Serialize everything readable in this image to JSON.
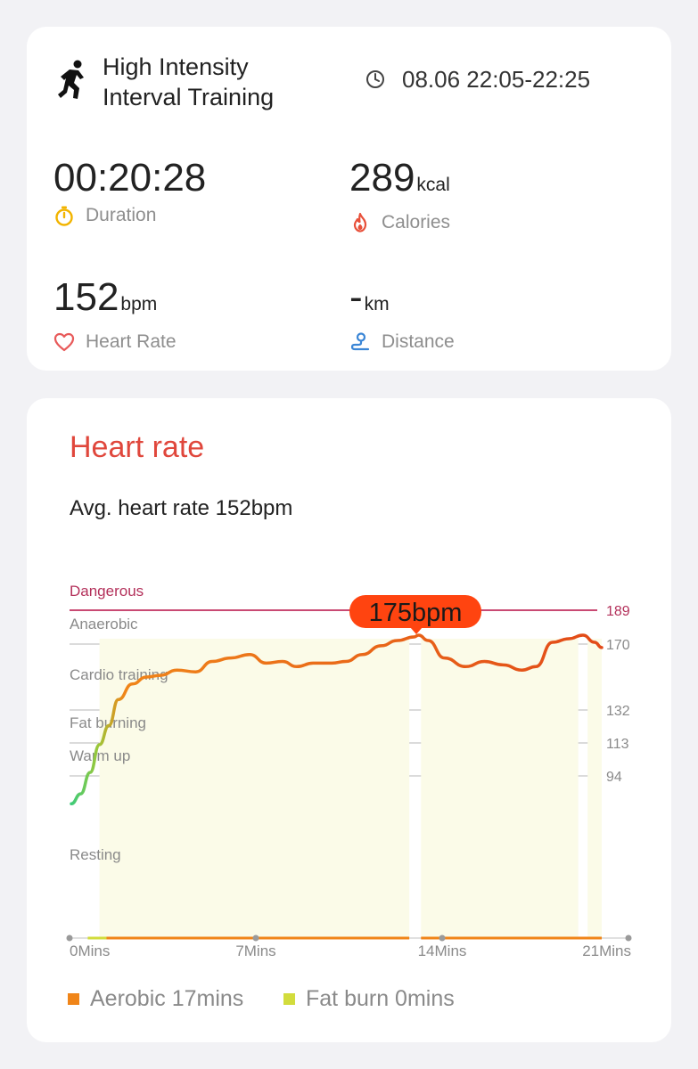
{
  "workout": {
    "title_line1": "High Intensity",
    "title_line2": "Interval Training",
    "time_range": "08.06 22:05-22:25"
  },
  "stats": {
    "duration": {
      "value": "00:20:28",
      "unit": "",
      "label": "Duration"
    },
    "calories": {
      "value": "289",
      "unit": "kcal",
      "label": "Calories"
    },
    "heart_rate": {
      "value": "152",
      "unit": "bpm",
      "label": "Heart Rate"
    },
    "distance": {
      "value": "-",
      "unit": "km",
      "label": "Distance"
    }
  },
  "heart_rate_section": {
    "title": "Heart rate",
    "avg_text": "Avg. heart rate 152bpm",
    "peak_callout": "175bpm",
    "legend": [
      {
        "label": "Aerobic 17mins",
        "color": "#f08519"
      },
      {
        "label": "Fat burn 0mins",
        "color": "#d2dc3c"
      }
    ]
  },
  "chart_data": {
    "type": "line",
    "x_labels": [
      "0Mins",
      "7Mins",
      "14Mins",
      "21Mins"
    ],
    "x_range": [
      0,
      22.6
    ],
    "zones": [
      {
        "name": "Dangerous",
        "bpm": 189
      },
      {
        "name": "Anaerobic",
        "bpm": 170
      },
      {
        "name": "Cardio training",
        "bpm": null
      },
      {
        "name": "Fat burning",
        "bpm": 132
      },
      {
        "name": "Warm up",
        "bpm": 113
      },
      {
        "name": "Resting",
        "bpm": 94
      }
    ],
    "right_ticks": [
      189,
      170,
      132,
      113,
      94
    ],
    "peak": {
      "minute": 14.7,
      "bpm": 175
    },
    "series": [
      {
        "values": [
          [
            0.0,
            80
          ],
          [
            0.4,
            85
          ],
          [
            0.8,
            96
          ],
          [
            1.2,
            112
          ],
          [
            1.6,
            123
          ],
          [
            2.0,
            138
          ],
          [
            2.6,
            147
          ],
          [
            3.2,
            151
          ],
          [
            3.8,
            152
          ],
          [
            4.5,
            155
          ],
          [
            5.3,
            154
          ],
          [
            6.0,
            160
          ],
          [
            6.8,
            162
          ],
          [
            7.6,
            164
          ],
          [
            8.3,
            159
          ],
          [
            9.0,
            160
          ],
          [
            9.6,
            157
          ],
          [
            10.3,
            159
          ],
          [
            11.1,
            159
          ],
          [
            11.7,
            160
          ],
          [
            12.4,
            164
          ],
          [
            13.2,
            169
          ],
          [
            13.9,
            172
          ],
          [
            14.6,
            174
          ],
          [
            14.8,
            175
          ],
          [
            15.2,
            172
          ],
          [
            15.9,
            162
          ],
          [
            16.8,
            157
          ],
          [
            17.6,
            160
          ],
          [
            18.4,
            158
          ],
          [
            19.2,
            155
          ],
          [
            19.8,
            157
          ],
          [
            20.5,
            171
          ],
          [
            21.2,
            173
          ],
          [
            21.8,
            175
          ],
          [
            22.3,
            171
          ],
          [
            22.6,
            168
          ]
        ]
      }
    ]
  }
}
